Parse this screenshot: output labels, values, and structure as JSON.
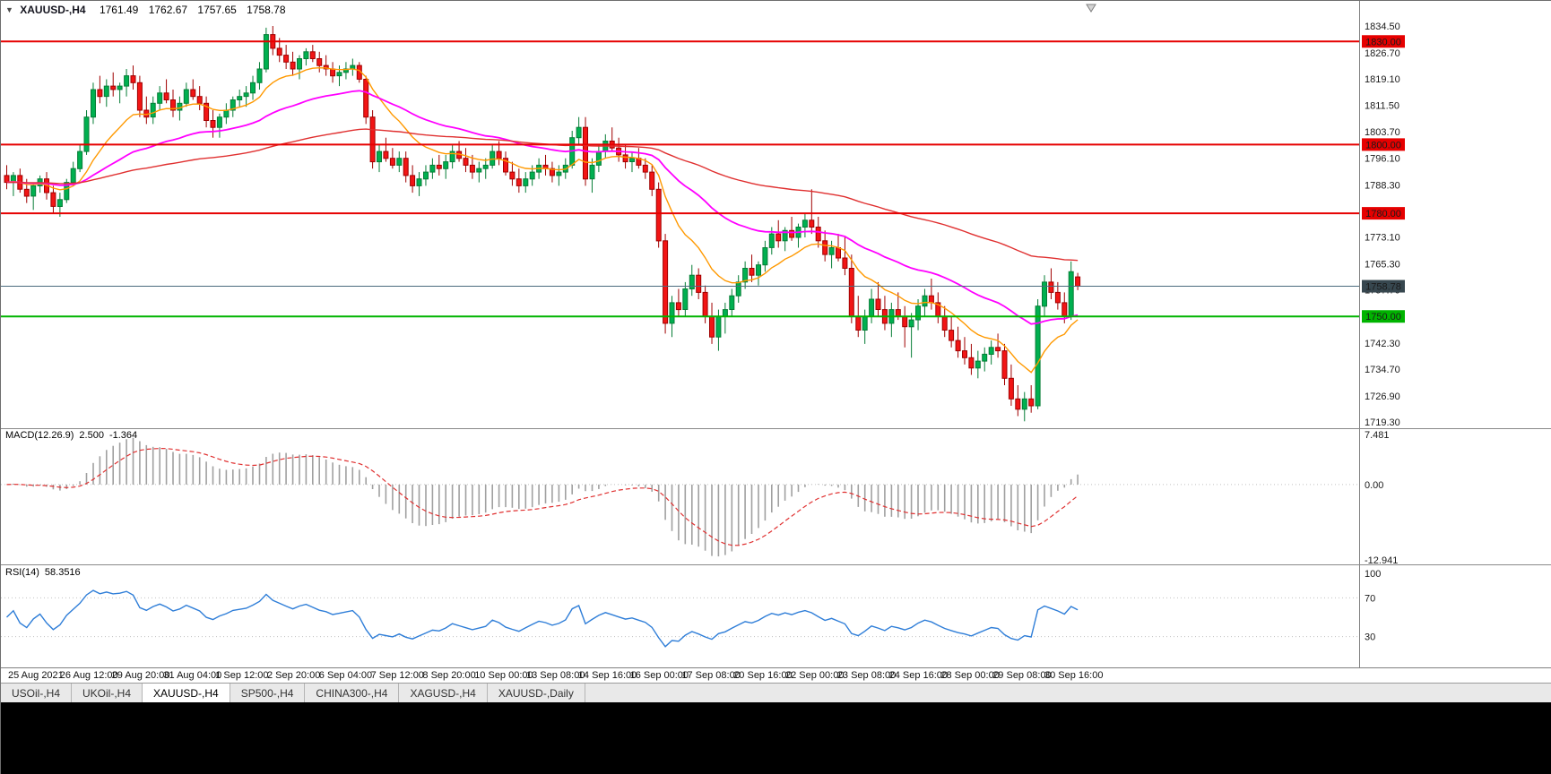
{
  "info_bar": {
    "marker": "▼",
    "symbol": "XAUUSD-,H4",
    "open": "1761.49",
    "high": "1762.67",
    "low": "1757.65",
    "close": "1758.78"
  },
  "chart_data": {
    "type": "candlestick",
    "symbol": "XAUUSD-",
    "timeframe": "H4",
    "price_axis": {
      "ticks": [
        1834.5,
        1826.7,
        1819.1,
        1811.5,
        1803.7,
        1796.1,
        1788.3,
        1773.1,
        1765.3,
        1757.7,
        1742.3,
        1734.7,
        1726.9,
        1719.3
      ],
      "min": 1717.5,
      "max": 1841.0
    },
    "colors": {
      "up": "#00b050",
      "up_border": "#067d36",
      "down": "#f21515",
      "down_border": "#a00000",
      "background": "#ffffff"
    },
    "levels": [
      {
        "value": 1830.0,
        "label": "1830.00",
        "color": "#e60000"
      },
      {
        "value": 1800.0,
        "label": "1800.00",
        "color": "#e60000"
      },
      {
        "value": 1780.0,
        "label": "1780.00",
        "color": "#e60000"
      },
      {
        "value": 1750.0,
        "label": "1750.00",
        "color": "#00b400"
      }
    ],
    "current_price": {
      "value": 1758.78,
      "label": "1758.78",
      "line_color": "#4a6b7d",
      "tag_color": "#37474f"
    },
    "moving_averages": [
      {
        "name": "fast",
        "period": 13,
        "color": "#ff9900",
        "width": 1.4
      },
      {
        "name": "medium",
        "period": 40,
        "color": "#ff00ff",
        "width": 1.8
      },
      {
        "name": "slow",
        "period": 110,
        "color": "#e03030",
        "width": 1.4
      }
    ],
    "time_labels": [
      "25 Aug 2021",
      "26 Aug 12:00",
      "29 Aug 20:00",
      "31 Aug 04:00",
      "1 Sep 12:00",
      "2 Sep 20:00",
      "6 Sep 04:00",
      "7 Sep 12:00",
      "8 Sep 20:00",
      "10 Sep 00:00",
      "13 Sep 08:00",
      "14 Sep 16:00",
      "16 Sep 00:00",
      "17 Sep 08:00",
      "20 Sep 16:00",
      "22 Sep 00:00",
      "23 Sep 08:00",
      "24 Sep 16:00",
      "28 Sep 00:00",
      "29 Sep 08:00",
      "30 Sep 16:00"
    ],
    "candles": [
      [
        1791,
        1794,
        1787,
        1789
      ],
      [
        1789,
        1792,
        1785,
        1791
      ],
      [
        1791,
        1793,
        1786,
        1787
      ],
      [
        1787,
        1790,
        1783,
        1785
      ],
      [
        1785,
        1789,
        1781,
        1788
      ],
      [
        1788,
        1791,
        1786,
        1790
      ],
      [
        1790,
        1792,
        1784,
        1786
      ],
      [
        1786,
        1788,
        1780,
        1782
      ],
      [
        1782,
        1786,
        1779,
        1784
      ],
      [
        1784,
        1790,
        1783,
        1789
      ],
      [
        1789,
        1795,
        1788,
        1793
      ],
      [
        1793,
        1800,
        1792,
        1798
      ],
      [
        1798,
        1810,
        1797,
        1808
      ],
      [
        1808,
        1818,
        1806,
        1816
      ],
      [
        1816,
        1820,
        1812,
        1814
      ],
      [
        1814,
        1819,
        1811,
        1817
      ],
      [
        1817,
        1821,
        1814,
        1816
      ],
      [
        1816,
        1818,
        1812,
        1817
      ],
      [
        1817,
        1822,
        1814,
        1820
      ],
      [
        1820,
        1823,
        1816,
        1818
      ],
      [
        1818,
        1820,
        1808,
        1810
      ],
      [
        1810,
        1814,
        1806,
        1808
      ],
      [
        1808,
        1814,
        1806,
        1812
      ],
      [
        1812,
        1817,
        1810,
        1815
      ],
      [
        1815,
        1819,
        1812,
        1813
      ],
      [
        1813,
        1816,
        1808,
        1810
      ],
      [
        1810,
        1814,
        1807,
        1812
      ],
      [
        1812,
        1818,
        1811,
        1816
      ],
      [
        1816,
        1819,
        1813,
        1814
      ],
      [
        1814,
        1817,
        1810,
        1812
      ],
      [
        1812,
        1814,
        1805,
        1807
      ],
      [
        1807,
        1810,
        1802,
        1805
      ],
      [
        1805,
        1809,
        1802,
        1808
      ],
      [
        1808,
        1812,
        1806,
        1810
      ],
      [
        1810,
        1814,
        1808,
        1813
      ],
      [
        1813,
        1816,
        1811,
        1814
      ],
      [
        1814,
        1817,
        1811,
        1815
      ],
      [
        1815,
        1820,
        1813,
        1818
      ],
      [
        1818,
        1824,
        1816,
        1822
      ],
      [
        1822,
        1834,
        1821,
        1832
      ],
      [
        1832,
        1834.5,
        1826,
        1828
      ],
      [
        1828,
        1831,
        1824,
        1826
      ],
      [
        1826,
        1829,
        1822,
        1824
      ],
      [
        1824,
        1827,
        1820,
        1822
      ],
      [
        1822,
        1826,
        1819,
        1825
      ],
      [
        1825,
        1828,
        1823,
        1827
      ],
      [
        1827,
        1829,
        1824,
        1825
      ],
      [
        1825,
        1827,
        1821,
        1823
      ],
      [
        1823,
        1826,
        1820,
        1822
      ],
      [
        1822,
        1824,
        1818,
        1820
      ],
      [
        1820,
        1823,
        1817,
        1821
      ],
      [
        1821,
        1824,
        1819,
        1822
      ],
      [
        1822,
        1825,
        1820,
        1823
      ],
      [
        1823,
        1824,
        1818,
        1819
      ],
      [
        1819,
        1820,
        1806,
        1808
      ],
      [
        1808,
        1810,
        1793,
        1795
      ],
      [
        1795,
        1800,
        1792,
        1798
      ],
      [
        1798,
        1802,
        1795,
        1796
      ],
      [
        1796,
        1799,
        1793,
        1794
      ],
      [
        1794,
        1798,
        1792,
        1796
      ],
      [
        1796,
        1798,
        1789,
        1791
      ],
      [
        1791,
        1794,
        1786,
        1788
      ],
      [
        1788,
        1792,
        1785,
        1790
      ],
      [
        1790,
        1794,
        1788,
        1792
      ],
      [
        1792,
        1796,
        1790,
        1794
      ],
      [
        1794,
        1797,
        1791,
        1793
      ],
      [
        1793,
        1797,
        1790,
        1795
      ],
      [
        1795,
        1800,
        1793,
        1798
      ],
      [
        1798,
        1801,
        1795,
        1796
      ],
      [
        1796,
        1799,
        1792,
        1794
      ],
      [
        1794,
        1797,
        1790,
        1792
      ],
      [
        1792,
        1795,
        1789,
        1793
      ],
      [
        1793,
        1796,
        1790,
        1794
      ],
      [
        1794,
        1800,
        1793,
        1798
      ],
      [
        1798,
        1801,
        1794,
        1796
      ],
      [
        1796,
        1798,
        1791,
        1792
      ],
      [
        1792,
        1795,
        1788,
        1790
      ],
      [
        1790,
        1793,
        1786,
        1788
      ],
      [
        1788,
        1792,
        1786,
        1790
      ],
      [
        1790,
        1794,
        1788,
        1792
      ],
      [
        1792,
        1796,
        1790,
        1794
      ],
      [
        1794,
        1797,
        1791,
        1793
      ],
      [
        1793,
        1795,
        1789,
        1791
      ],
      [
        1791,
        1794,
        1788,
        1792
      ],
      [
        1792,
        1796,
        1790,
        1794
      ],
      [
        1794,
        1804,
        1793,
        1802
      ],
      [
        1802,
        1808,
        1800,
        1805
      ],
      [
        1805,
        1808,
        1788,
        1790
      ],
      [
        1790,
        1796,
        1786,
        1794
      ],
      [
        1794,
        1800,
        1792,
        1798
      ],
      [
        1798,
        1803,
        1796,
        1801
      ],
      [
        1801,
        1805,
        1798,
        1799
      ],
      [
        1799,
        1802,
        1795,
        1797
      ],
      [
        1797,
        1800,
        1793,
        1795
      ],
      [
        1795,
        1798,
        1792,
        1796
      ],
      [
        1796,
        1799,
        1793,
        1794
      ],
      [
        1794,
        1796,
        1790,
        1792
      ],
      [
        1792,
        1794,
        1785,
        1787
      ],
      [
        1787,
        1789,
        1770,
        1772
      ],
      [
        1772,
        1774,
        1745,
        1748
      ],
      [
        1748,
        1756,
        1744,
        1754
      ],
      [
        1754,
        1758,
        1750,
        1752
      ],
      [
        1752,
        1760,
        1750,
        1758
      ],
      [
        1758,
        1765,
        1756,
        1762
      ],
      [
        1762,
        1764,
        1755,
        1757
      ],
      [
        1757,
        1759,
        1748,
        1750
      ],
      [
        1750,
        1754,
        1742,
        1744
      ],
      [
        1744,
        1752,
        1740,
        1750
      ],
      [
        1750,
        1754,
        1745,
        1752
      ],
      [
        1752,
        1758,
        1750,
        1756
      ],
      [
        1756,
        1762,
        1754,
        1760
      ],
      [
        1760,
        1766,
        1758,
        1764
      ],
      [
        1764,
        1768,
        1760,
        1762
      ],
      [
        1762,
        1766,
        1759,
        1765
      ],
      [
        1765,
        1772,
        1763,
        1770
      ],
      [
        1770,
        1776,
        1768,
        1774
      ],
      [
        1774,
        1778,
        1770,
        1772
      ],
      [
        1772,
        1776,
        1769,
        1775
      ],
      [
        1775,
        1779,
        1772,
        1773
      ],
      [
        1773,
        1777,
        1770,
        1776
      ],
      [
        1776,
        1780,
        1773,
        1778
      ],
      [
        1778,
        1787,
        1774,
        1776
      ],
      [
        1776,
        1779,
        1770,
        1772
      ],
      [
        1772,
        1775,
        1766,
        1768
      ],
      [
        1768,
        1772,
        1764,
        1770
      ],
      [
        1770,
        1774,
        1766,
        1767
      ],
      [
        1767,
        1773,
        1762,
        1764
      ],
      [
        1764,
        1768,
        1748,
        1750
      ],
      [
        1750,
        1756,
        1744,
        1746
      ],
      [
        1746,
        1752,
        1742,
        1750
      ],
      [
        1750,
        1758,
        1748,
        1755
      ],
      [
        1755,
        1760,
        1750,
        1752
      ],
      [
        1752,
        1756,
        1746,
        1748
      ],
      [
        1748,
        1754,
        1744,
        1752
      ],
      [
        1752,
        1757,
        1749,
        1750
      ],
      [
        1750,
        1753,
        1741,
        1747
      ],
      [
        1747,
        1751,
        1738,
        1749
      ],
      [
        1749,
        1755,
        1746,
        1753
      ],
      [
        1753,
        1758,
        1750,
        1756
      ],
      [
        1756,
        1761,
        1752,
        1754
      ],
      [
        1754,
        1757,
        1748,
        1750
      ],
      [
        1750,
        1753,
        1744,
        1746
      ],
      [
        1746,
        1750,
        1741,
        1743
      ],
      [
        1743,
        1747,
        1738,
        1740
      ],
      [
        1740,
        1744,
        1736,
        1738
      ],
      [
        1738,
        1742,
        1733,
        1735
      ],
      [
        1735,
        1740,
        1732,
        1737
      ],
      [
        1737,
        1741,
        1734,
        1739
      ],
      [
        1739,
        1743,
        1736,
        1741
      ],
      [
        1741,
        1745,
        1738,
        1740
      ],
      [
        1740,
        1742,
        1730,
        1732
      ],
      [
        1732,
        1736,
        1724,
        1726
      ],
      [
        1726,
        1730,
        1721,
        1723
      ],
      [
        1723,
        1728,
        1719.5,
        1726
      ],
      [
        1726,
        1730,
        1722,
        1724
      ],
      [
        1724,
        1755,
        1723,
        1753
      ],
      [
        1753,
        1762,
        1750,
        1760
      ],
      [
        1760,
        1764,
        1755,
        1757
      ],
      [
        1757,
        1760,
        1752,
        1754
      ],
      [
        1754,
        1757,
        1748,
        1750
      ],
      [
        1750,
        1766,
        1749,
        1763
      ],
      [
        1761.49,
        1762.67,
        1757.65,
        1758.78
      ]
    ]
  },
  "macd_panel": {
    "label": "MACD(12.26.9)",
    "value_1": "2.500",
    "value_2": "-1.364",
    "params": {
      "fast": 12,
      "slow": 26,
      "signal": 9
    },
    "colors": {
      "histogram": "#a0a0a0",
      "signal": "#e03030"
    },
    "axis": {
      "max": "7.481",
      "zero": "0.00",
      "min": "-12.941"
    }
  },
  "rsi_panel": {
    "label": "RSI(14)",
    "value": "58.3516",
    "period": 14,
    "color": "#2f7ed8",
    "levels": [
      70,
      30
    ],
    "axis_labels": [
      "100",
      "70",
      "30"
    ]
  },
  "tabs": [
    {
      "label": "USOil-,H4",
      "active": false
    },
    {
      "label": "UKOil-,H4",
      "active": false
    },
    {
      "label": "XAUUSD-,H4",
      "active": true
    },
    {
      "label": "SP500-,H4",
      "active": false
    },
    {
      "label": "CHINA300-,H4",
      "active": false
    },
    {
      "label": "XAGUSD-,H4",
      "active": false
    },
    {
      "label": "XAUUSD-,Daily",
      "active": false
    }
  ]
}
